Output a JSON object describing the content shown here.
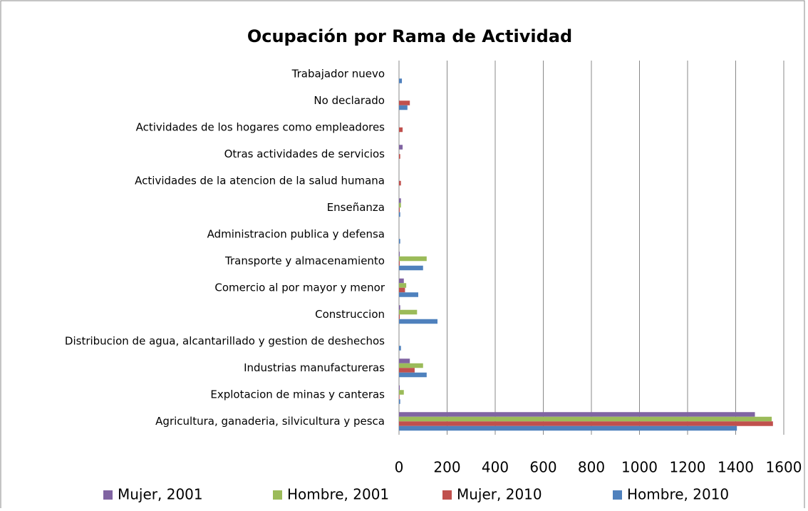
{
  "chart_data": {
    "type": "bar",
    "orientation": "horizontal",
    "title": "Ocupación por Rama de Actividad",
    "categories": [
      "Agricultura, ganaderia, silvicultura y pesca",
      "Explotacion de minas y canteras",
      "Industrias manufactureras",
      "Distribucion de agua, alcantarillado y gestion de deshechos",
      "Construccion",
      "Comercio al por mayor y menor",
      "Transporte y almacenamiento",
      "Administracion publica y defensa",
      "Enseñanza",
      "Actividades de la atencion de la salud humana",
      "Otras actividades de servicios",
      "Actividades de los hogares como empleadores",
      "No declarado",
      "Trabajador nuevo"
    ],
    "series": [
      {
        "name": "Mujer, 2001",
        "color": "#8064a2",
        "values": [
          1480,
          3,
          45,
          0,
          5,
          20,
          3,
          0,
          8,
          0,
          15,
          0,
          0,
          0
        ]
      },
      {
        "name": "Hombre, 2001",
        "color": "#9bbb59",
        "values": [
          1550,
          20,
          100,
          0,
          75,
          30,
          115,
          0,
          8,
          0,
          0,
          0,
          0,
          0
        ]
      },
      {
        "name": "Mujer, 2010",
        "color": "#c0504d",
        "values": [
          1555,
          2,
          65,
          0,
          3,
          25,
          3,
          0,
          3,
          8,
          5,
          15,
          45,
          0
        ]
      },
      {
        "name": "Hombre, 2010",
        "color": "#4f81bd",
        "values": [
          1405,
          5,
          115,
          8,
          160,
          80,
          100,
          5,
          5,
          0,
          0,
          0,
          35,
          12
        ]
      }
    ],
    "xlim": [
      0,
      1600
    ],
    "xticks": [
      0,
      200,
      400,
      600,
      800,
      1000,
      1200,
      1400,
      1600
    ],
    "grid": true,
    "legend": "bottom"
  }
}
